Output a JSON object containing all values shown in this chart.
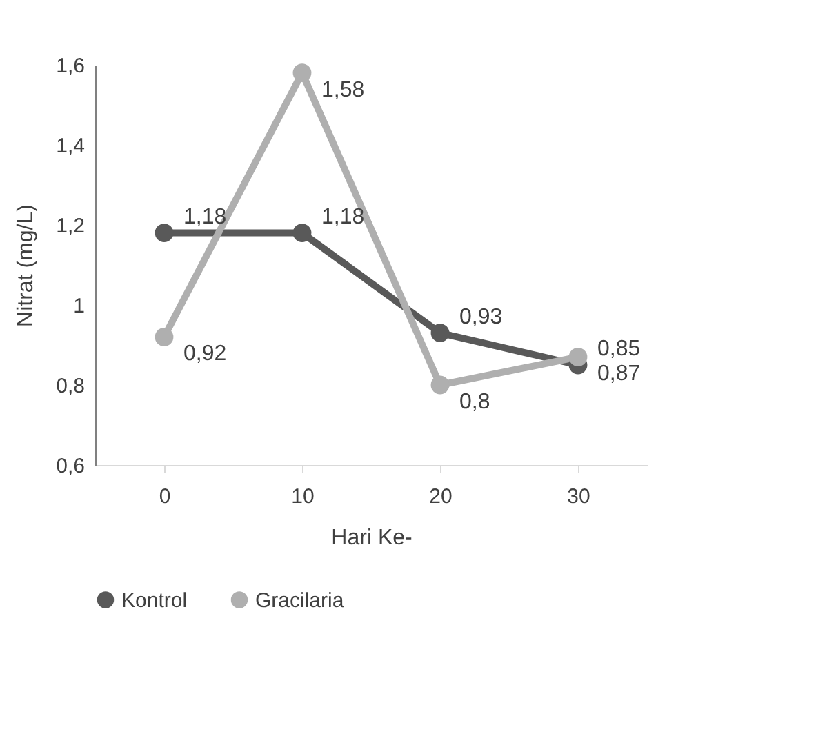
{
  "chart_data": {
    "type": "line",
    "xlabel": "Hari Ke-",
    "ylabel": "Nitrat (mg/L)",
    "categories": [
      "0",
      "10",
      "20",
      "30"
    ],
    "series": [
      {
        "name": "Kontrol",
        "color": "#595959",
        "values": [
          1.18,
          1.18,
          0.93,
          0.85
        ],
        "value_labels": [
          "1,18",
          "1,18",
          "0,93",
          "0,85"
        ]
      },
      {
        "name": "Gracilaria",
        "color": "#afafaf",
        "values": [
          0.92,
          1.58,
          0.8,
          0.87
        ],
        "value_labels": [
          "0,92",
          "1,58",
          "0,8",
          "0,87"
        ]
      }
    ],
    "ylim": [
      0.6,
      1.6
    ],
    "yticks": [
      {
        "value": 0.6,
        "label": "0,6"
      },
      {
        "value": 0.8,
        "label": "0,8"
      },
      1,
      {
        "value": 1.2,
        "label": "1,2"
      },
      {
        "value": 1.4,
        "label": "1,4"
      },
      {
        "value": 1.6,
        "label": "1,6"
      }
    ],
    "marker": "circle",
    "grid": false,
    "legend": "bottom"
  }
}
